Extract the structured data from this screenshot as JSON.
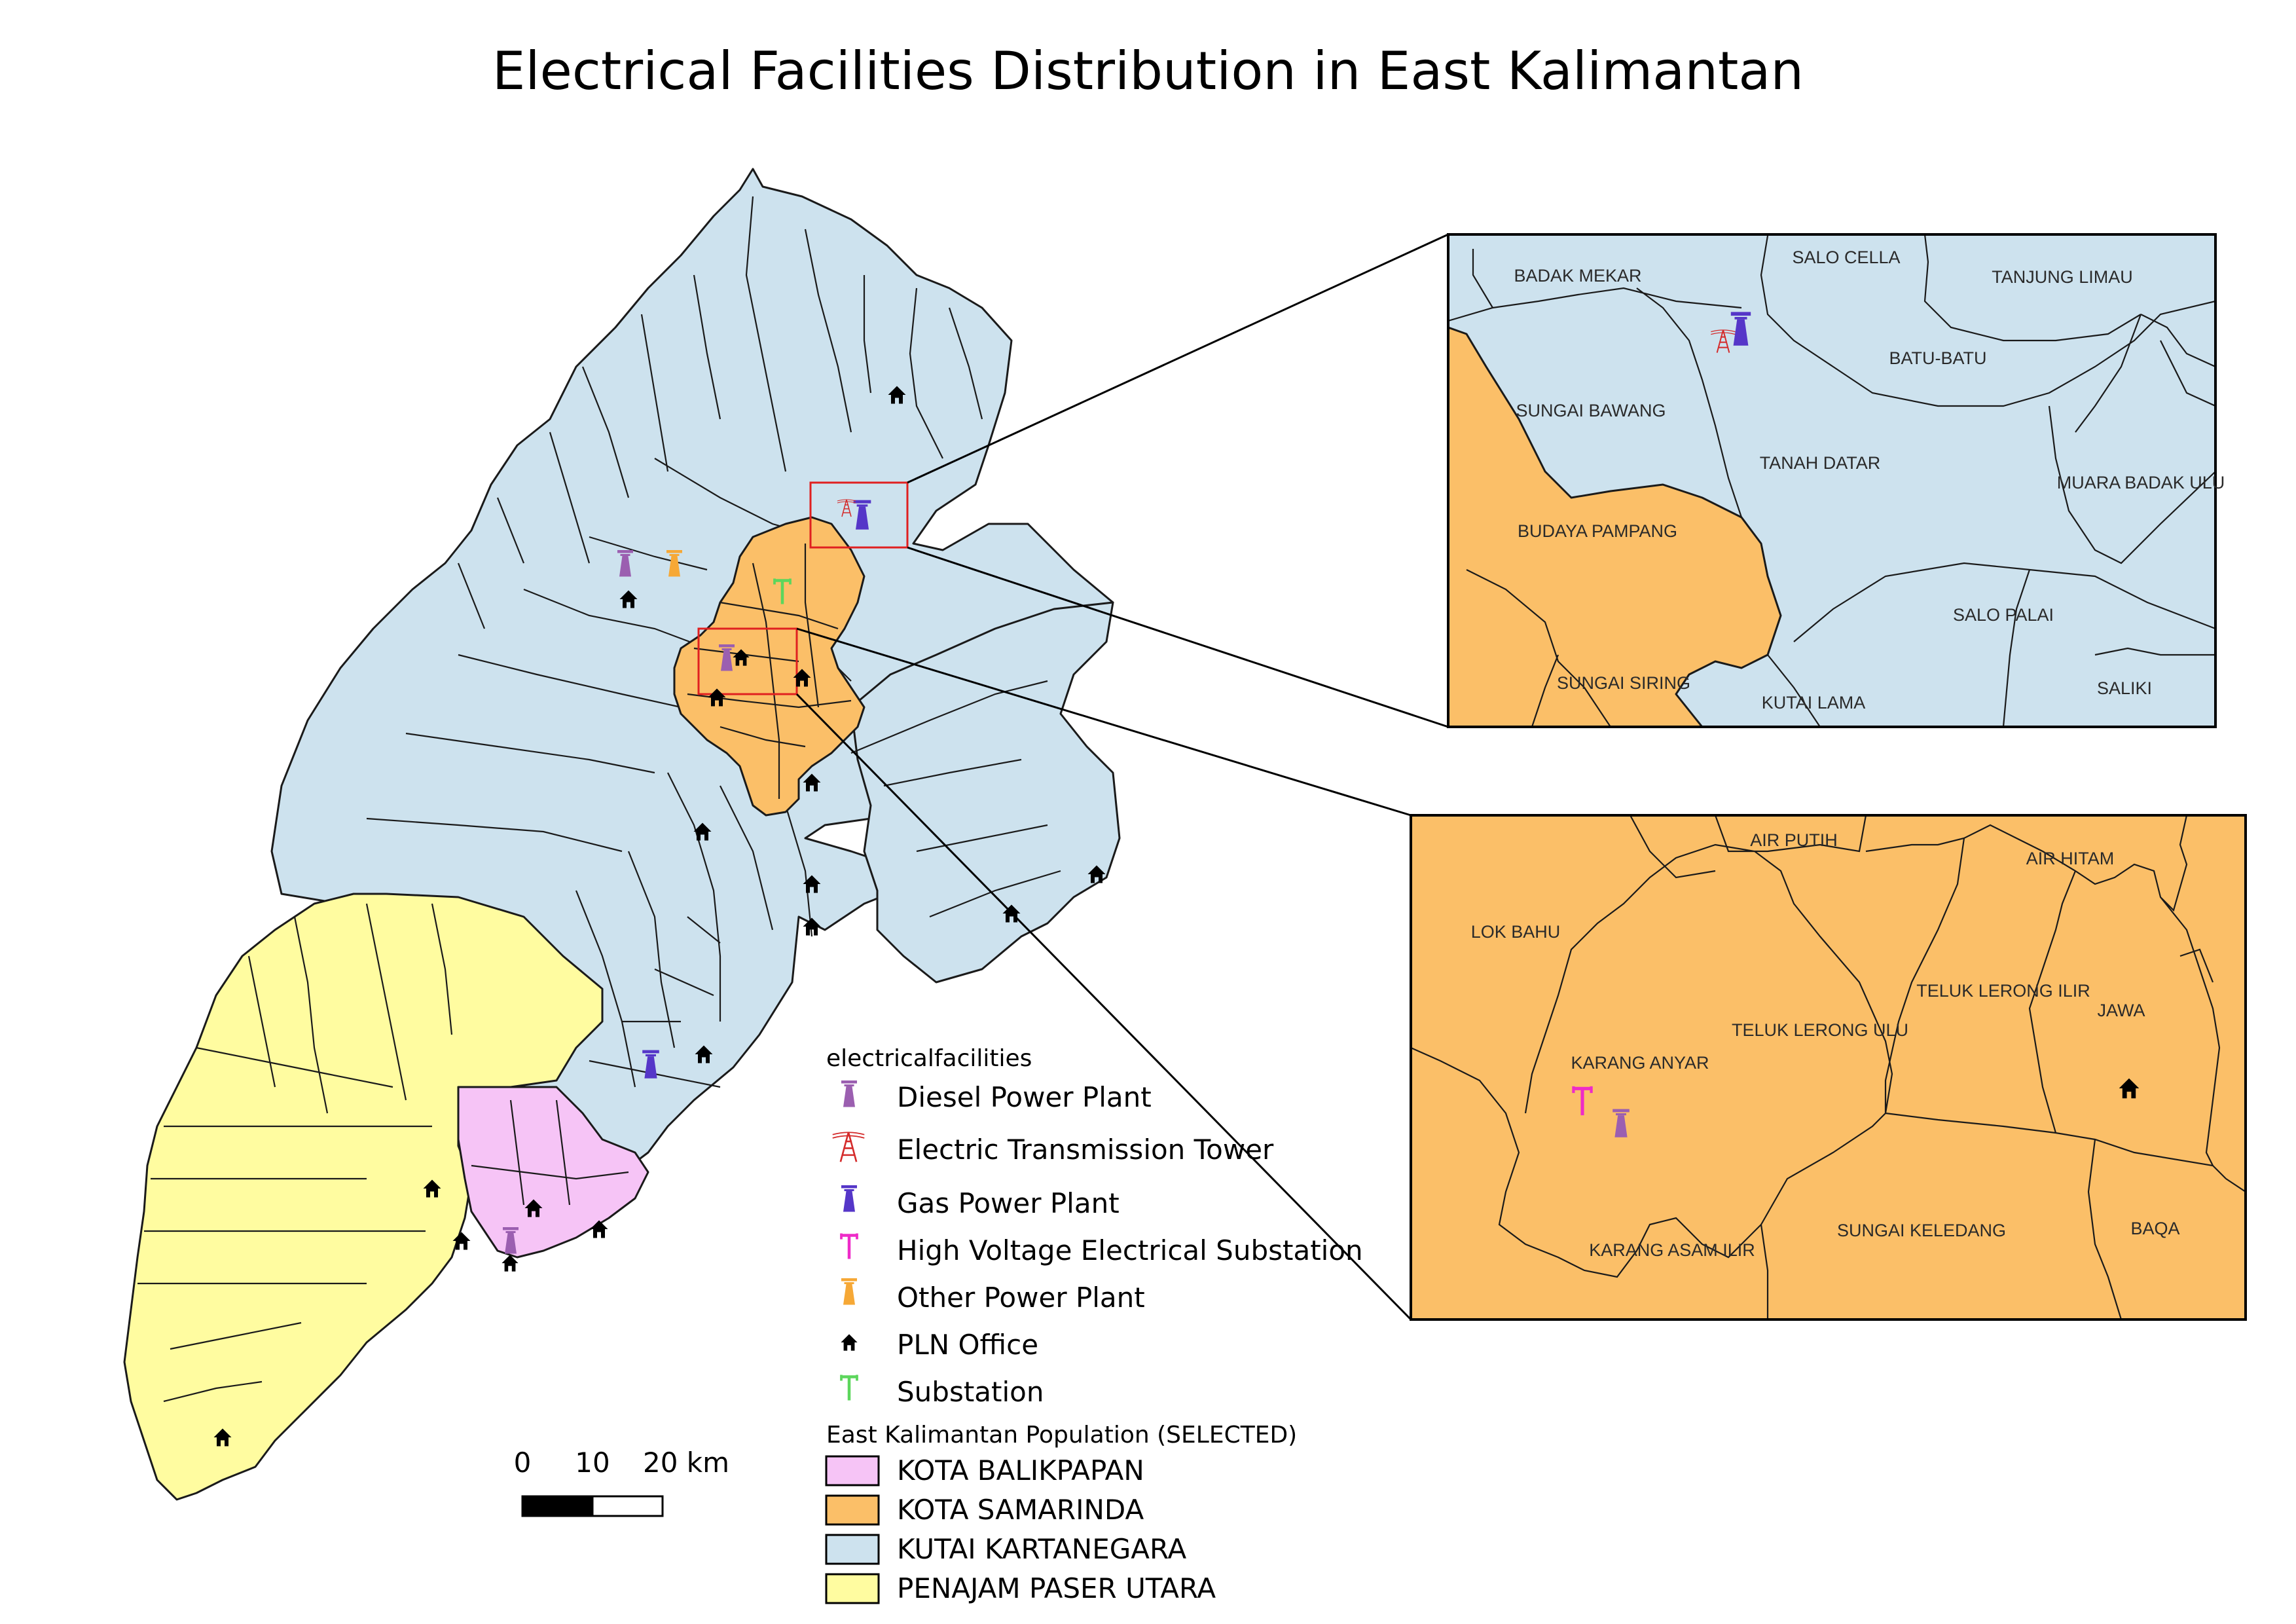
{
  "title": "Electrical Facilities Distribution in East Kalimantan",
  "colors": {
    "kota_balikpapan": "#f6c4f6",
    "kota_samarinda": "#fbbf68",
    "kutai_kartanegara": "#cde2ee",
    "penajam_paser_utara": "#fffca0",
    "diesel": "#9b5fb0",
    "transmission": "#d42a2a",
    "gas": "#5536c8",
    "hv_substation": "#ee2bc8",
    "other_power": "#f6a836",
    "pln_office": "#000000",
    "substation": "#5cd65c",
    "inset_box": "#e02020"
  },
  "legend": {
    "facilities_title": "electricalfacilities",
    "facilities": [
      {
        "label": "Diesel Power Plant",
        "icon": "diesel-power-plant-icon"
      },
      {
        "label": "Electric Transmission Tower",
        "icon": "transmission-tower-icon"
      },
      {
        "label": "Gas Power Plant",
        "icon": "gas-power-plant-icon"
      },
      {
        "label": "High Voltage Electrical Substation",
        "icon": "hv-substation-icon"
      },
      {
        "label": "Other Power Plant",
        "icon": "other-power-plant-icon"
      },
      {
        "label": "PLN Office",
        "icon": "pln-office-icon"
      },
      {
        "label": "Substation",
        "icon": "substation-icon"
      }
    ],
    "population_title": "East Kalimantan Population (SELECTED)",
    "population": [
      {
        "label": "KOTA BALIKPAPAN"
      },
      {
        "label": "KOTA SAMARINDA"
      },
      {
        "label": "KUTAI KARTANEGARA"
      },
      {
        "label": "PENAJAM PASER UTARA"
      }
    ]
  },
  "scale_bar": {
    "labels": [
      "0",
      "10",
      "20 km"
    ]
  },
  "inset_top": {
    "villages": [
      "BADAK MEKAR",
      "SALO CELLA",
      "TANJUNG LIMAU",
      "BATU-BATU",
      "SUNGAI BAWANG",
      "TANAH DATAR",
      "MUARA BADAK ULU",
      "BUDAYA PAMPANG",
      "SALO PALAI",
      "SUNGAI SIRING",
      "KUTAI LAMA",
      "SALIKI"
    ]
  },
  "inset_bottom": {
    "villages": [
      "AIR PUTIH",
      "AIR HITAM",
      "LOK BAHU",
      "TELUK LERONG ILIR",
      "TELUK LERONG ULU",
      "JAWA",
      "KARANG ANYAR",
      "SUNGAI KELEDANG",
      "KARANG ASAM ILIR",
      "BAQA"
    ]
  }
}
